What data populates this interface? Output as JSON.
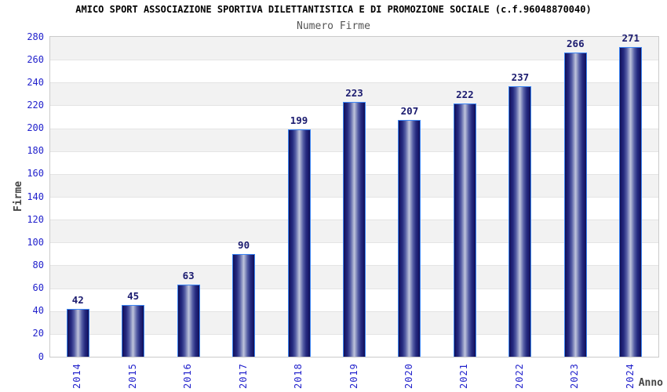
{
  "chart_data": {
    "type": "bar",
    "title": "AMICO SPORT ASSOCIAZIONE SPORTIVA DILETTANTISTICA E DI PROMOZIONE SOCIALE (c.f.96048870040)",
    "subtitle": "Numero Firme",
    "xlabel": "Anno",
    "ylabel": "Firme",
    "categories": [
      "2014",
      "2015",
      "2016",
      "2017",
      "2018",
      "2019",
      "2020",
      "2021",
      "2022",
      "2023",
      "2024"
    ],
    "values": [
      42,
      45,
      63,
      90,
      199,
      223,
      207,
      222,
      237,
      266,
      271
    ],
    "ylim": [
      0,
      280
    ],
    "ytick_step": 20,
    "yticks": [
      0,
      20,
      40,
      60,
      80,
      100,
      120,
      140,
      160,
      180,
      200,
      220,
      240,
      260,
      280
    ],
    "legend": null,
    "grid": "alternating horizontal bands every 20 units, gray band at top",
    "colors": {
      "background": "#ffffff",
      "tick_label_blue": "#2222cc",
      "value_label_navy": "#1b1b6f",
      "title_color": "#000000",
      "subtitle_color": "#555555",
      "axis_title_color": "#454545",
      "band_gray": "#f2f2f2",
      "band_white": "#ffffff",
      "gridline": "#e4e4e4",
      "plot_border": "#cbcbcb",
      "bar_border": "#3d86f5",
      "bar_edge_dark": "#0f0f52",
      "bar_mid": "#555ea5",
      "bar_highlight": "#bfc4dc"
    }
  }
}
